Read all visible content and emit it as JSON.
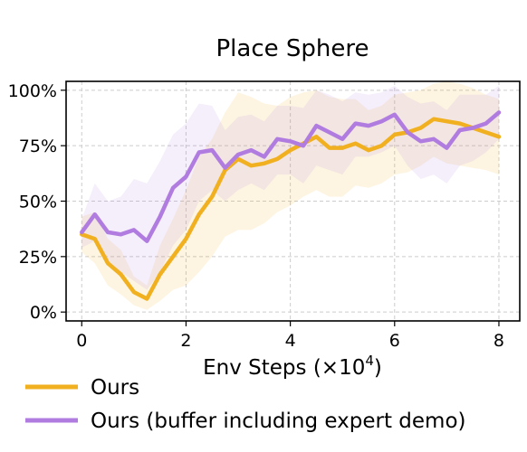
{
  "chart_data": {
    "type": "line",
    "title": "Place Sphere",
    "xlabel": "Env Steps (×10",
    "xlabel_exp": "4",
    "xlabel_close": ")",
    "ylabel": "",
    "xlim": [
      -0.3,
      8.4
    ],
    "ylim": [
      -0.04,
      1.04
    ],
    "x_ticks": [
      0,
      2,
      4,
      6,
      8
    ],
    "x_tick_labels": [
      "0",
      "2",
      "4",
      "6",
      "8"
    ],
    "y_ticks": [
      0,
      0.25,
      0.5,
      0.75,
      1.0
    ],
    "y_tick_labels": [
      "0%",
      "25%",
      "50%",
      "75%",
      "100%"
    ],
    "grid": true,
    "legend_position": "bottom",
    "x": [
      0,
      0.25,
      0.5,
      0.75,
      1.0,
      1.25,
      1.5,
      1.75,
      2.0,
      2.25,
      2.5,
      2.75,
      3.0,
      3.25,
      3.5,
      3.75,
      4.0,
      4.25,
      4.5,
      4.75,
      5.0,
      5.25,
      5.5,
      5.75,
      6.0,
      6.25,
      6.5,
      6.75,
      7.0,
      7.25,
      7.5,
      7.75,
      8.0
    ],
    "series": [
      {
        "name": "Ours",
        "color": "#f0b020",
        "values": [
          0.35,
          0.33,
          0.22,
          0.17,
          0.09,
          0.06,
          0.17,
          0.25,
          0.33,
          0.44,
          0.52,
          0.64,
          0.69,
          0.66,
          0.67,
          0.69,
          0.73,
          0.76,
          0.79,
          0.74,
          0.74,
          0.76,
          0.73,
          0.75,
          0.8,
          0.81,
          0.83,
          0.87,
          0.86,
          0.85,
          0.83,
          0.81,
          0.79
        ],
        "lower": [
          0.27,
          0.22,
          0.12,
          0.08,
          0.03,
          0.01,
          0.05,
          0.1,
          0.12,
          0.18,
          0.25,
          0.34,
          0.37,
          0.37,
          0.4,
          0.45,
          0.48,
          0.52,
          0.55,
          0.52,
          0.52,
          0.57,
          0.56,
          0.58,
          0.62,
          0.63,
          0.66,
          0.7,
          0.67,
          0.66,
          0.65,
          0.64,
          0.62
        ],
        "upper": [
          0.43,
          0.45,
          0.33,
          0.28,
          0.16,
          0.12,
          0.3,
          0.42,
          0.55,
          0.7,
          0.78,
          0.9,
          0.99,
          0.97,
          0.94,
          0.93,
          0.97,
          0.99,
          1.0,
          0.97,
          0.96,
          0.96,
          0.91,
          0.93,
          0.98,
          0.99,
          1.0,
          1.03,
          1.04,
          1.03,
          1.01,
          0.98,
          0.96
        ]
      },
      {
        "name": "Ours (buffer including expert demo)",
        "color": "#b07ce0",
        "values": [
          0.36,
          0.44,
          0.36,
          0.35,
          0.37,
          0.32,
          0.43,
          0.56,
          0.61,
          0.72,
          0.73,
          0.65,
          0.71,
          0.73,
          0.7,
          0.78,
          0.77,
          0.75,
          0.84,
          0.81,
          0.78,
          0.85,
          0.84,
          0.86,
          0.89,
          0.81,
          0.77,
          0.78,
          0.74,
          0.82,
          0.83,
          0.85,
          0.9
        ],
        "lower": [
          0.29,
          0.32,
          0.22,
          0.18,
          0.14,
          0.1,
          0.18,
          0.3,
          0.37,
          0.5,
          0.55,
          0.5,
          0.55,
          0.58,
          0.55,
          0.62,
          0.62,
          0.58,
          0.66,
          0.64,
          0.62,
          0.7,
          0.7,
          0.72,
          0.75,
          0.66,
          0.6,
          0.62,
          0.58,
          0.66,
          0.68,
          0.72,
          0.78
        ],
        "upper": [
          0.42,
          0.58,
          0.5,
          0.52,
          0.6,
          0.58,
          0.68,
          0.8,
          0.85,
          0.94,
          0.93,
          0.82,
          0.88,
          0.89,
          0.86,
          0.93,
          0.93,
          0.92,
          1.0,
          0.98,
          0.95,
          0.99,
          0.98,
          0.99,
          1.02,
          0.97,
          0.94,
          0.95,
          0.91,
          0.98,
          0.98,
          0.98,
          1.02
        ]
      }
    ]
  }
}
